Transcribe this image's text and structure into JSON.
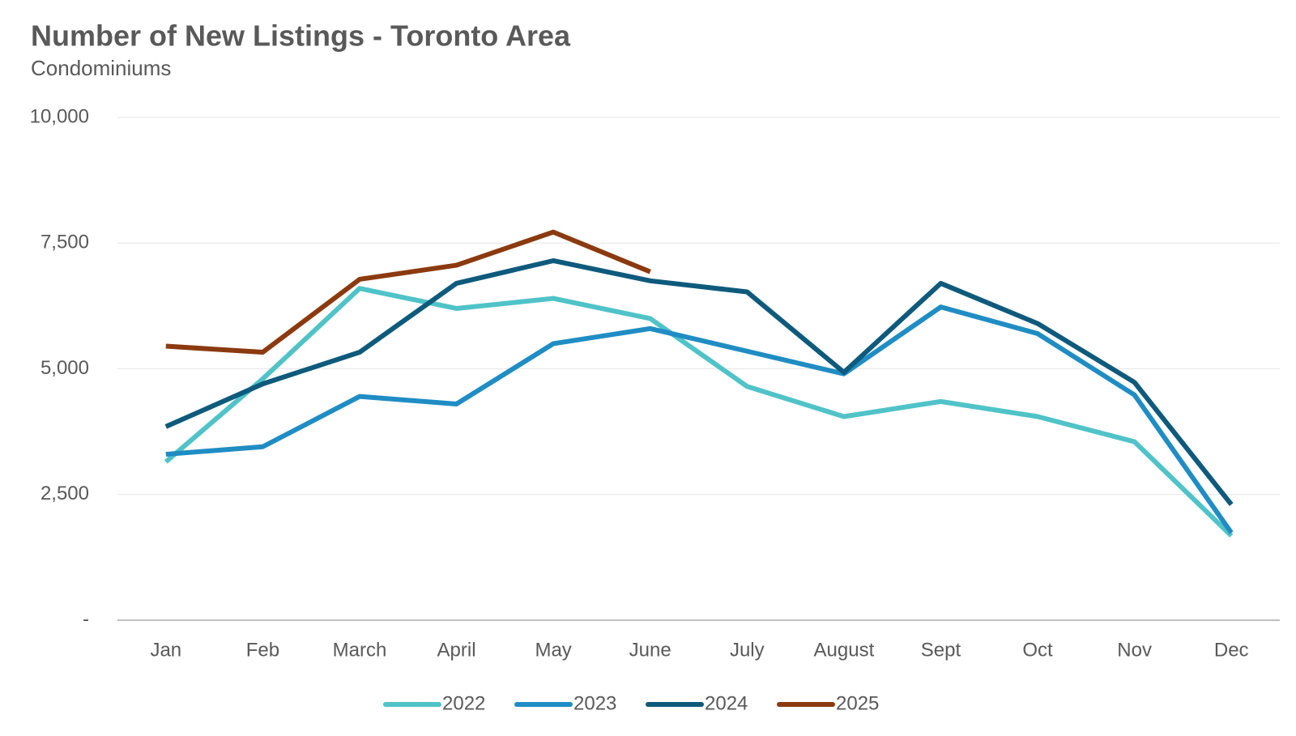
{
  "chart_data": {
    "type": "line",
    "title": "Number of New Listings - Toronto Area",
    "subtitle": "Condominiums",
    "categories": [
      "Jan",
      "Feb",
      "March",
      "April",
      "May",
      "June",
      "July",
      "August",
      "Sept",
      "Oct",
      "Nov",
      "Dec"
    ],
    "series": [
      {
        "name": "2022",
        "color": "#4fc3c8",
        "values": [
          3150,
          4800,
          6600,
          6200,
          6400,
          6000,
          4650,
          4050,
          4350,
          4050,
          3550,
          1680
        ]
      },
      {
        "name": "2023",
        "color": "#1f8dc4",
        "values": [
          3300,
          3450,
          4450,
          4300,
          5500,
          5800,
          5350,
          4900,
          6230,
          5700,
          4480,
          1740
        ]
      },
      {
        "name": "2024",
        "color": "#0e5a7c",
        "values": [
          3850,
          4700,
          5330,
          6700,
          7150,
          6750,
          6530,
          4930,
          6700,
          5900,
          4730,
          2300
        ]
      },
      {
        "name": "2025",
        "color": "#8b3a0f",
        "values": [
          5450,
          5330,
          6780,
          7060,
          7720,
          6930,
          null,
          null,
          null,
          null,
          null,
          null
        ]
      }
    ],
    "ylim": [
      0,
      10000
    ],
    "yticks": [
      {
        "value": 0,
        "label": "-"
      },
      {
        "value": 2500,
        "label": "2,500"
      },
      {
        "value": 5000,
        "label": "5,000"
      },
      {
        "value": 7500,
        "label": "7,500"
      },
      {
        "value": 10000,
        "label": "10,000"
      }
    ],
    "grid": true,
    "legend": "bottom"
  }
}
